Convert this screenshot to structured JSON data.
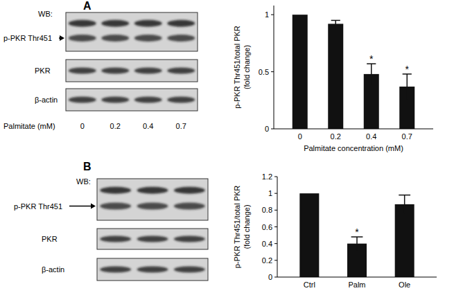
{
  "chart_data": [
    {
      "type": "bar",
      "categories": [
        "0",
        "0.2",
        "0.4",
        "0.7"
      ],
      "values": [
        1,
        0.92,
        0.48,
        0.37
      ],
      "errors": [
        0,
        0.03,
        0.09,
        0.11
      ],
      "color": "#111111",
      "ylabel": [
        "p-PKR Thr451/total PKR",
        "(fold change)"
      ],
      "xlabel": "Palmitate concentration (mM)",
      "ylim": [
        0,
        1.08
      ],
      "yticks": [
        0,
        0.5,
        1
      ],
      "grid": false,
      "annotations": [
        {
          "x": "0.4",
          "text": "*"
        },
        {
          "x": "0.7",
          "text": "*"
        }
      ]
    },
    {
      "type": "bar",
      "categories": [
        "Ctrl",
        "Palm",
        "Ole"
      ],
      "values": [
        1,
        0.4,
        0.87
      ],
      "errors": [
        0,
        0.08,
        0.11
      ],
      "color": "#111111",
      "ylabel": [
        "p-PKR Thr451/total PKR",
        "(fold change)"
      ],
      "ylim": [
        0,
        1.2
      ],
      "yticks": [
        0,
        0.2,
        0.4,
        0.6,
        0.8,
        1,
        1.2
      ],
      "grid": false,
      "annotations": [
        {
          "x": "Palm",
          "text": "*"
        }
      ]
    }
  ],
  "panels": [
    {
      "label": "A",
      "wb": "WB:",
      "rows": [
        "p-PKR Thr451",
        "PKR",
        "β-actin"
      ],
      "lane_title": "Palmitate (mM)",
      "lane_labels": [
        "0",
        "0.2",
        "0.4",
        "0.7"
      ]
    },
    {
      "label": "B",
      "wb": "WB:",
      "rows": [
        "p-PKR Thr451",
        "PKR",
        "β-actin"
      ]
    }
  ]
}
